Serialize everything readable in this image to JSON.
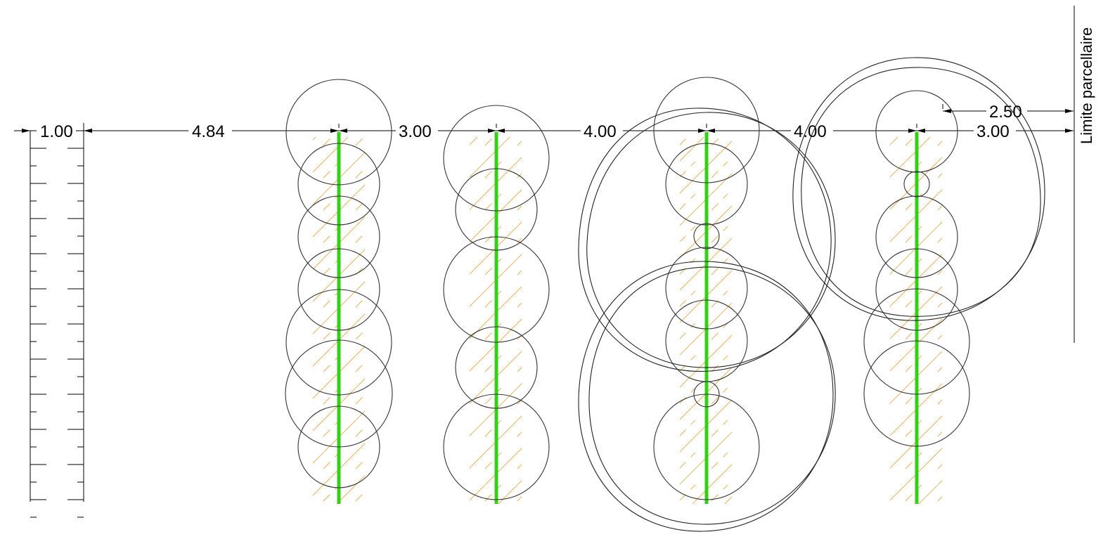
{
  "dimensions": {
    "d1": "1.00",
    "d2": "4.84",
    "d3": "3.00",
    "d4": "4.00",
    "d5": "4.00",
    "d6": "3.00",
    "d7": "2.50"
  },
  "boundary_label": "Limite parcellaire",
  "colors": {
    "plant_line": "#33d016",
    "hatch": "#e6b45a",
    "linework": "#000000"
  }
}
